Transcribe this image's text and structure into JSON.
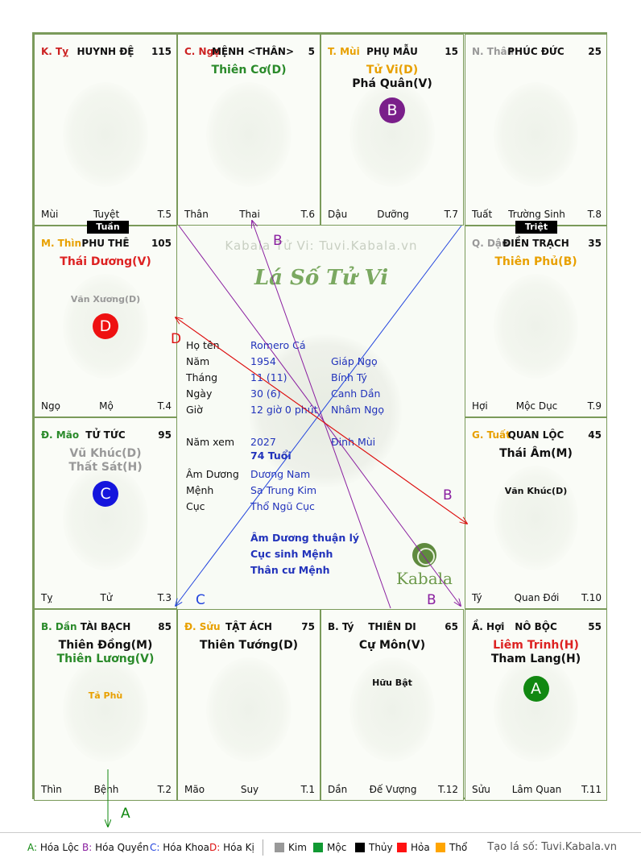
{
  "palaces": [
    {
      "id": "ty",
      "can_chi": "K. Tỵ",
      "can_color": "#cc2222",
      "name": "HUYNH ĐỆ",
      "age": "115",
      "stars": [],
      "minor": [],
      "badge": null,
      "footer": [
        "Mùi",
        "Tuyệt",
        "T.5"
      ]
    },
    {
      "id": "ngo",
      "can_chi": "C. Ngọ",
      "can_color": "#cc2222",
      "name": "MỆNH <THÂN>",
      "age": "5",
      "stars": [
        {
          "text": "Thiên Cơ(D)",
          "color": "#2a8a2a"
        }
      ],
      "minor": [],
      "badge": null,
      "footer": [
        "Thân",
        "Thai",
        "T.6"
      ]
    },
    {
      "id": "mui",
      "can_chi": "T. Mùi",
      "can_color": "#e8a000",
      "name": "PHỤ MẪU",
      "age": "15",
      "stars": [
        {
          "text": "Tử Vi(D)",
          "color": "#e8a000"
        },
        {
          "text": "Phá Quân(V)",
          "color": "#111111"
        }
      ],
      "minor": [],
      "badge": {
        "text": "B",
        "color": "#7a1f8a"
      },
      "footer": [
        "Dậu",
        "Dưỡng",
        "T.7"
      ]
    },
    {
      "id": "than",
      "can_chi": "N. Thân",
      "can_color": "#999999",
      "name": "PHÚC ĐỨC",
      "age": "25",
      "stars": [],
      "minor": [],
      "badge": null,
      "footer": [
        "Tuất",
        "Trường Sinh",
        "T.8"
      ]
    },
    {
      "id": "thin",
      "can_chi": "M. Thìn",
      "can_color": "#e8a000",
      "name": "PHU THÊ",
      "age": "105",
      "stars": [
        {
          "text": "Thái Dương(V)",
          "color": "#dd2222"
        }
      ],
      "minor": [
        {
          "text": "Văn Xương(D)",
          "color": "#999999"
        }
      ],
      "badge": {
        "text": "D",
        "color": "#ee1111"
      },
      "footer": [
        "Ngọ",
        "Mộ",
        "T.4"
      ]
    },
    {
      "id": "dau",
      "can_chi": "Q. Dậu",
      "can_color": "#999999",
      "name": "ĐIỀN TRẠCH",
      "age": "35",
      "stars": [
        {
          "text": "Thiên Phủ(B)",
          "color": "#e8a000"
        }
      ],
      "minor": [],
      "badge": null,
      "footer": [
        "Hợi",
        "Mộc Dục",
        "T.9"
      ]
    },
    {
      "id": "mao",
      "can_chi": "Đ. Mão",
      "can_color": "#2a8a2a",
      "name": "TỬ TỨC",
      "age": "95",
      "stars": [
        {
          "text": "Vũ Khúc(D)",
          "color": "#999999"
        },
        {
          "text": "Thất Sát(H)",
          "color": "#999999"
        }
      ],
      "minor": [],
      "badge": {
        "text": "C",
        "color": "#1515dd"
      },
      "footer": [
        "Tỵ",
        "Tử",
        "T.3"
      ]
    },
    {
      "id": "tuat",
      "can_chi": "G. Tuất",
      "can_color": "#e8a000",
      "name": "QUAN LỘC",
      "age": "45",
      "stars": [
        {
          "text": "Thái Âm(M)",
          "color": "#111111"
        }
      ],
      "minor": [
        {
          "text": "Văn Khúc(D)",
          "color": "#111111"
        }
      ],
      "badge": null,
      "footer": [
        "Tý",
        "Quan Đới",
        "T.10"
      ]
    },
    {
      "id": "dan",
      "can_chi": "B. Dần",
      "can_color": "#2a8a2a",
      "name": "TÀI BẠCH",
      "age": "85",
      "stars": [
        {
          "text": "Thiên Đồng(M)",
          "color": "#111111"
        },
        {
          "text": "Thiên Lương(V)",
          "color": "#2a8a2a"
        }
      ],
      "minor": [
        {
          "text": "Tả Phù",
          "color": "#e8a000"
        }
      ],
      "badge": null,
      "footer": [
        "Thìn",
        "Bệnh",
        "T.2"
      ]
    },
    {
      "id": "suu",
      "can_chi": "Đ. Sửu",
      "can_color": "#e8a000",
      "name": "TẬT ÁCH",
      "age": "75",
      "stars": [
        {
          "text": "Thiên Tướng(D)",
          "color": "#111111"
        }
      ],
      "minor": [],
      "badge": null,
      "footer": [
        "Mão",
        "Suy",
        "T.1"
      ]
    },
    {
      "id": "ti",
      "can_chi": "B. Tý",
      "can_color": "#111111",
      "name": "THIÊN DI",
      "age": "65",
      "stars": [
        {
          "text": "Cự Môn(V)",
          "color": "#111111"
        }
      ],
      "minor": [
        {
          "text": "Hữu Bật",
          "color": "#111111"
        }
      ],
      "badge": null,
      "footer": [
        "Dần",
        "Đế Vượng",
        "T.12"
      ]
    },
    {
      "id": "hoi",
      "can_chi": "Ầ. Hợi",
      "can_color": "#111111",
      "name": "NÔ BỘC",
      "age": "55",
      "stars": [
        {
          "text": "Liêm Trinh(H)",
          "color": "#dd2222"
        },
        {
          "text": "Tham Lang(H)",
          "color": "#111111"
        }
      ],
      "minor": [],
      "badge": {
        "text": "A",
        "color": "#118811"
      },
      "footer": [
        "Sửu",
        "Lâm Quan",
        "T.11"
      ]
    }
  ],
  "tags": {
    "tuan": "Tuần",
    "triet": "Triệt"
  },
  "center": {
    "watermark": "Kabala Tử Vi: Tuvi.Kabala.vn",
    "title": "Lá Số Tử Vi",
    "rows": [
      {
        "label": "Họ tên",
        "v1": "Romero Cá",
        "v2": ""
      },
      {
        "label": "Năm",
        "v1": "1954",
        "v2": "Giáp Ngọ"
      },
      {
        "label": "Tháng",
        "v1": "11  (11)",
        "v2": "Bính Tý"
      },
      {
        "label": "Ngày",
        "v1": "30  (6)",
        "v2": "Canh Dần"
      },
      {
        "label": "Giờ",
        "v1": "12 giờ 0 phút",
        "v2": "Nhâm Ngọ"
      },
      {
        "label": "Năm xem",
        "v1": "2027",
        "v2": "Đinh Mùi"
      }
    ],
    "age": "74 Tuổi",
    "rows2": [
      {
        "label": "Âm Dương",
        "v1": "Dương Nam"
      },
      {
        "label": "Mệnh",
        "v1": "Sa Trung Kim"
      },
      {
        "label": "Cục",
        "v1": "Thổ Ngũ Cục"
      }
    ],
    "notes": [
      "Âm Dương thuận lý",
      "Cục sinh Mệnh",
      "Thân cư Mệnh"
    ],
    "logo": "Kabala"
  },
  "arrow_labels": {
    "a": "A",
    "b": "B",
    "c": "C",
    "d": "D"
  },
  "arrow_colors": {
    "a": "#118811",
    "b": "#8a1fa0",
    "c": "#2244dd",
    "d": "#dd1111"
  },
  "legend": {
    "hoa": [
      {
        "key": "A:",
        "text": " Hóa Lộc",
        "color": "#118811"
      },
      {
        "key": "B:",
        "text": " Hóa Quyền",
        "color": "#8a1fa0"
      },
      {
        "key": "C:",
        "text": " Hóa Khoa",
        "color": "#2244dd"
      },
      {
        "key": "D:",
        "text": " Hóa Kị",
        "color": "#dd1111"
      }
    ],
    "elements": [
      {
        "name": "Kim",
        "color": "#999999"
      },
      {
        "name": "Mộc",
        "color": "#119933"
      },
      {
        "name": "Thủy",
        "color": "#000000"
      },
      {
        "name": "Hỏa",
        "color": "#ff1111"
      },
      {
        "name": "Thổ",
        "color": "#ffa500"
      }
    ],
    "site": "Tạo lá số: Tuvi.Kabala.vn"
  }
}
